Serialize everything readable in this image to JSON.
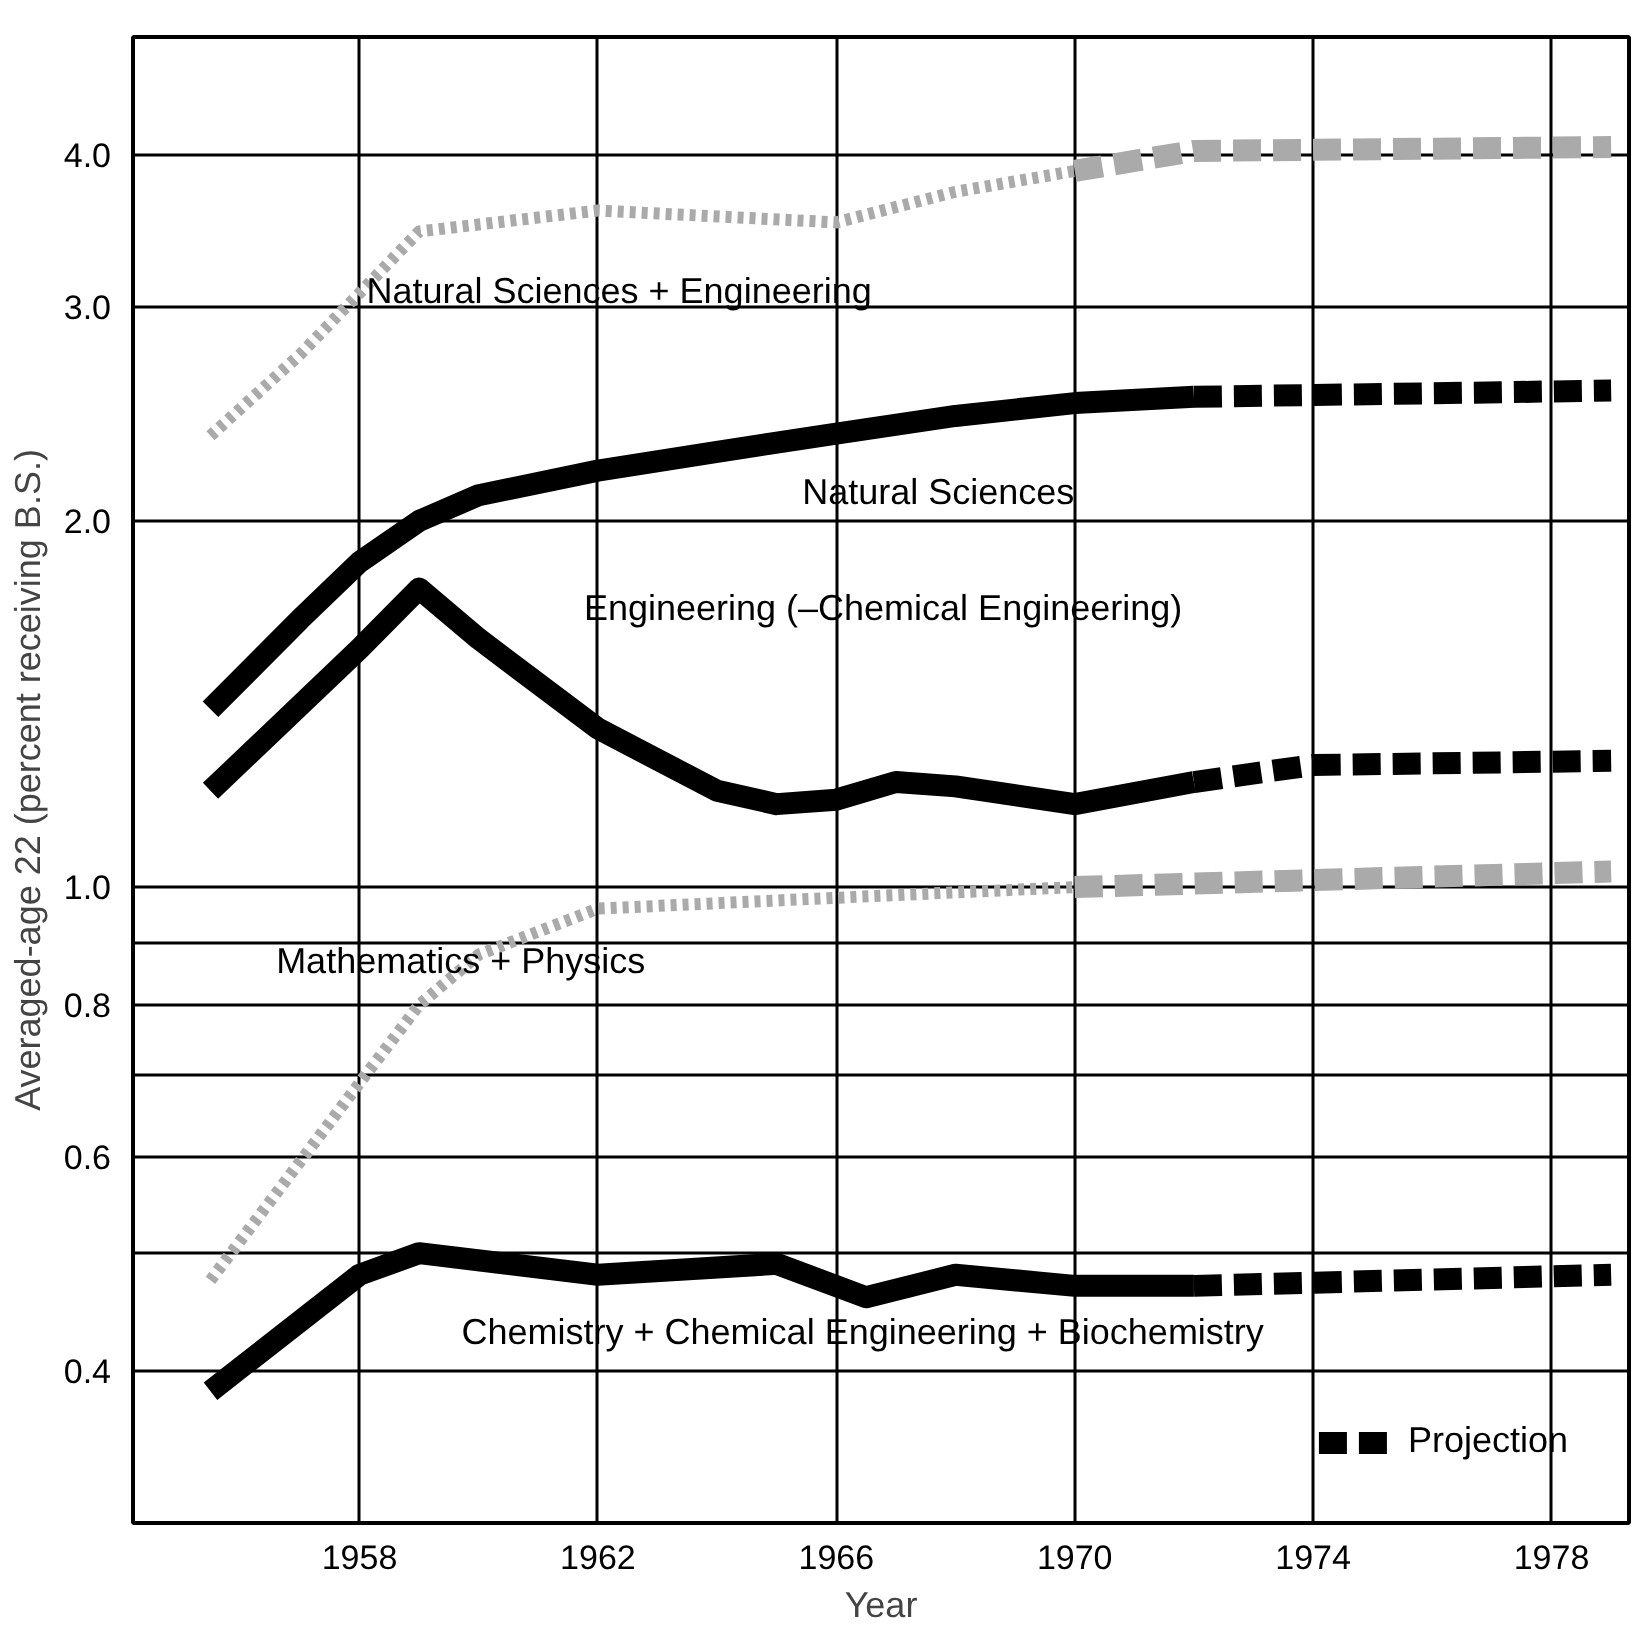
{
  "chart_data": {
    "type": "line",
    "xlabel": "Year",
    "ylabel": "Averaged-age 22 (percent receiving B.S.)",
    "log": "y",
    "grid": true,
    "legend": "bottom right",
    "marker": "none",
    "xlim": [
      1954.2,
      1979.3
    ],
    "xticks": [
      1958,
      1962,
      1966,
      1970,
      1974,
      1978
    ],
    "ylim": [
      0.3,
      5
    ],
    "yticks": [
      {
        "value": 0.4,
        "label": "0.4"
      },
      {
        "value": 0.5,
        "label": null
      },
      {
        "value": 0.6,
        "label": "0.6"
      },
      {
        "value": 0.7,
        "label": null
      },
      {
        "value": 0.8,
        "label": "0.8"
      },
      {
        "value": 0.9,
        "label": null
      },
      {
        "value": 1.0,
        "label": "1.0"
      },
      {
        "value": 2.0,
        "label": "2.0"
      },
      {
        "value": 3.0,
        "label": "3.0"
      },
      {
        "value": 4.0,
        "label": "4.0"
      }
    ],
    "series": [
      {
        "name": "Natural Sciences",
        "color": "#000000",
        "line_style": "solid",
        "x": [
          1955.5,
          1957,
          1958,
          1959,
          1960,
          1962,
          1964,
          1966,
          1968,
          1970,
          1972
        ],
        "values": [
          1.4,
          1.66,
          1.85,
          2.0,
          2.1,
          2.2,
          2.28,
          2.36,
          2.44,
          2.5,
          2.53
        ]
      },
      {
        "name": "Projection",
        "color": "#000000",
        "line_style": "dashed",
        "x": [
          1972,
          1979
        ],
        "values": [
          2.53,
          2.56
        ]
      },
      {
        "name": "Engineering (–Chemical Engineering)",
        "color": "#000000",
        "line_style": "solid",
        "x": [
          1955.5,
          1958,
          1959,
          1960,
          1962,
          1964,
          1965,
          1966,
          1967,
          1968,
          1970,
          1972
        ],
        "values": [
          1.2,
          1.57,
          1.76,
          1.6,
          1.35,
          1.2,
          1.17,
          1.18,
          1.22,
          1.21,
          1.17,
          1.22
        ]
      },
      {
        "color": "#000000",
        "line_style": "dashed",
        "x": [
          1972,
          1974,
          1979
        ],
        "values": [
          1.22,
          1.26,
          1.27
        ]
      },
      {
        "name": "Mathematics + Physics",
        "color": "#aaaaaa",
        "line_style": "dotted",
        "x": [
          1955.5,
          1958,
          1959,
          1960,
          1962,
          1966,
          1970
        ],
        "values": [
          0.475,
          0.69,
          0.8,
          0.88,
          0.96,
          0.98,
          1.0
        ]
      },
      {
        "color": "#aaaaaa",
        "line_style": "dashed",
        "x": [
          1970,
          1979
        ],
        "values": [
          1.0,
          1.03
        ]
      },
      {
        "name": "Natural Sciences + Engineering",
        "color": "#aaaaaa",
        "line_style": "dotted",
        "x": [
          1955.5,
          1957,
          1959,
          1962,
          1966,
          1968,
          1970
        ],
        "values": [
          2.35,
          2.74,
          3.46,
          3.6,
          3.52,
          3.73,
          3.88
        ]
      },
      {
        "color": "#aaaaaa",
        "line_style": "dashed",
        "x": [
          1970,
          1972,
          1979
        ],
        "values": [
          3.88,
          4.03,
          4.06
        ]
      },
      {
        "name": "Chemistry + Chemical Engineering + Biochemistry",
        "color": "#000000",
        "line_style": "solid",
        "x": [
          1955.5,
          1958,
          1959,
          1962,
          1965,
          1966.5,
          1968,
          1970,
          1972
        ],
        "values": [
          0.385,
          0.48,
          0.5,
          0.48,
          0.49,
          0.46,
          0.48,
          0.47,
          0.47
        ]
      },
      {
        "color": "#000000",
        "line_style": "dashed",
        "x": [
          1972,
          1979
        ],
        "values": [
          0.47,
          0.48
        ]
      }
    ]
  }
}
